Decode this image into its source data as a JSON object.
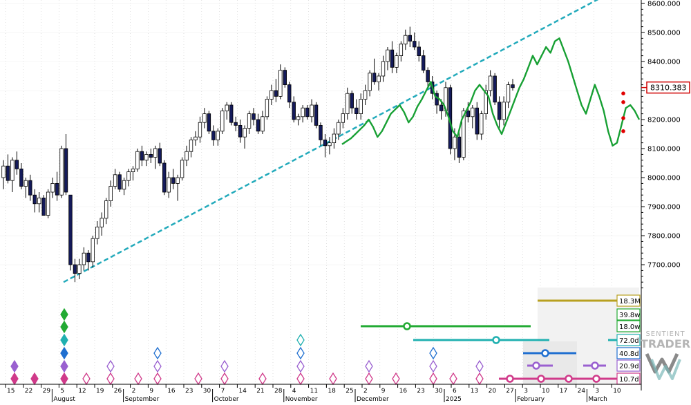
{
  "chart_data": {
    "type": "candlestick",
    "y_axis": {
      "ticks": [
        7700,
        7800,
        7900,
        8000,
        8100,
        8200,
        8300,
        8400,
        8500,
        8600
      ],
      "tick_labels": [
        "7700.000",
        "7800.000",
        "7900.000",
        "8000.000",
        "8100.000",
        "8200.000",
        "8300.000",
        "8400.000",
        "8500.000",
        "8600.000"
      ],
      "last_price_label": "8310.383",
      "last_price": 8310.383
    },
    "x_axis": {
      "day_ticks": [
        "15",
        "22",
        "29",
        "5",
        "12",
        "19",
        "26",
        "2",
        "9",
        "16",
        "23",
        "30",
        "7",
        "14",
        "21",
        "28",
        "4",
        "11",
        "18",
        "25",
        "2",
        "9",
        "16",
        "23",
        "30",
        "6",
        "13",
        "20",
        "27",
        "3",
        "10",
        "17",
        "24",
        "3",
        "10"
      ],
      "month_labels": [
        "August",
        "September",
        "October",
        "November",
        "December",
        "2025",
        "February",
        "March"
      ]
    },
    "candles": [
      {
        "o": 8000,
        "h": 8060,
        "l": 7960,
        "c": 8040
      },
      {
        "o": 8040,
        "h": 8080,
        "l": 7980,
        "c": 7990
      },
      {
        "o": 7990,
        "h": 8070,
        "l": 7950,
        "c": 8060
      },
      {
        "o": 8060,
        "h": 8090,
        "l": 8010,
        "c": 8030
      },
      {
        "o": 8030,
        "h": 8050,
        "l": 7960,
        "c": 7970
      },
      {
        "o": 7970,
        "h": 8000,
        "l": 7930,
        "c": 7990
      },
      {
        "o": 7990,
        "h": 8010,
        "l": 7920,
        "c": 7940
      },
      {
        "o": 7940,
        "h": 7960,
        "l": 7880,
        "c": 7910
      },
      {
        "o": 7910,
        "h": 7950,
        "l": 7880,
        "c": 7930
      },
      {
        "o": 7930,
        "h": 7940,
        "l": 7870,
        "c": 7870
      },
      {
        "o": 7870,
        "h": 7960,
        "l": 7860,
        "c": 7950
      },
      {
        "o": 7950,
        "h": 8000,
        "l": 7930,
        "c": 7980
      },
      {
        "o": 7980,
        "h": 8020,
        "l": 7920,
        "c": 7940
      },
      {
        "o": 7940,
        "h": 8110,
        "l": 7930,
        "c": 8100
      },
      {
        "o": 8100,
        "h": 8150,
        "l": 7940,
        "c": 7950
      },
      {
        "o": 7940,
        "h": 7940,
        "l": 7680,
        "c": 7700
      },
      {
        "o": 7700,
        "h": 7720,
        "l": 7640,
        "c": 7670
      },
      {
        "o": 7670,
        "h": 7720,
        "l": 7650,
        "c": 7700
      },
      {
        "o": 7700,
        "h": 7760,
        "l": 7680,
        "c": 7740
      },
      {
        "o": 7740,
        "h": 7750,
        "l": 7680,
        "c": 7710
      },
      {
        "o": 7710,
        "h": 7800,
        "l": 7690,
        "c": 7790
      },
      {
        "o": 7790,
        "h": 7850,
        "l": 7770,
        "c": 7830
      },
      {
        "o": 7830,
        "h": 7880,
        "l": 7800,
        "c": 7860
      },
      {
        "o": 7860,
        "h": 7930,
        "l": 7840,
        "c": 7920
      },
      {
        "o": 7920,
        "h": 7990,
        "l": 7900,
        "c": 7970
      },
      {
        "o": 7970,
        "h": 8030,
        "l": 7960,
        "c": 8010
      },
      {
        "o": 8010,
        "h": 8020,
        "l": 7950,
        "c": 7960
      },
      {
        "o": 7960,
        "h": 8000,
        "l": 7940,
        "c": 7990
      },
      {
        "o": 7990,
        "h": 8030,
        "l": 7970,
        "c": 8020
      },
      {
        "o": 8020,
        "h": 8040,
        "l": 7990,
        "c": 8030
      },
      {
        "o": 8030,
        "h": 8100,
        "l": 8020,
        "c": 8090
      },
      {
        "o": 8090,
        "h": 8110,
        "l": 8040,
        "c": 8060
      },
      {
        "o": 8060,
        "h": 8090,
        "l": 8040,
        "c": 8080
      },
      {
        "o": 8080,
        "h": 8100,
        "l": 8050,
        "c": 8070
      },
      {
        "o": 8070,
        "h": 8110,
        "l": 8030,
        "c": 8100
      },
      {
        "o": 8100,
        "h": 8120,
        "l": 8040,
        "c": 8050
      },
      {
        "o": 8050,
        "h": 8060,
        "l": 7940,
        "c": 7950
      },
      {
        "o": 7950,
        "h": 8020,
        "l": 7930,
        "c": 8000
      },
      {
        "o": 8000,
        "h": 8030,
        "l": 7960,
        "c": 7980
      },
      {
        "o": 7980,
        "h": 8010,
        "l": 7920,
        "c": 8000
      },
      {
        "o": 8000,
        "h": 8070,
        "l": 7990,
        "c": 8060
      },
      {
        "o": 8060,
        "h": 8110,
        "l": 8040,
        "c": 8090
      },
      {
        "o": 8090,
        "h": 8140,
        "l": 8070,
        "c": 8130
      },
      {
        "o": 8130,
        "h": 8160,
        "l": 8110,
        "c": 8140
      },
      {
        "o": 8140,
        "h": 8210,
        "l": 8120,
        "c": 8190
      },
      {
        "o": 8190,
        "h": 8240,
        "l": 8170,
        "c": 8220
      },
      {
        "o": 8220,
        "h": 8230,
        "l": 8150,
        "c": 8160
      },
      {
        "o": 8160,
        "h": 8180,
        "l": 8110,
        "c": 8130
      },
      {
        "o": 8130,
        "h": 8170,
        "l": 8110,
        "c": 8160
      },
      {
        "o": 8160,
        "h": 8240,
        "l": 8150,
        "c": 8230
      },
      {
        "o": 8230,
        "h": 8260,
        "l": 8200,
        "c": 8250
      },
      {
        "o": 8250,
        "h": 8260,
        "l": 8180,
        "c": 8190
      },
      {
        "o": 8190,
        "h": 8210,
        "l": 8160,
        "c": 8180
      },
      {
        "o": 8180,
        "h": 8200,
        "l": 8120,
        "c": 8140
      },
      {
        "o": 8140,
        "h": 8180,
        "l": 8100,
        "c": 8170
      },
      {
        "o": 8170,
        "h": 8230,
        "l": 8150,
        "c": 8220
      },
      {
        "o": 8220,
        "h": 8240,
        "l": 8180,
        "c": 8200
      },
      {
        "o": 8200,
        "h": 8220,
        "l": 8150,
        "c": 8160
      },
      {
        "o": 8160,
        "h": 8230,
        "l": 8150,
        "c": 8210
      },
      {
        "o": 8210,
        "h": 8280,
        "l": 8200,
        "c": 8270
      },
      {
        "o": 8270,
        "h": 8320,
        "l": 8250,
        "c": 8300
      },
      {
        "o": 8300,
        "h": 8340,
        "l": 8260,
        "c": 8280
      },
      {
        "o": 8280,
        "h": 8390,
        "l": 8270,
        "c": 8370
      },
      {
        "o": 8370,
        "h": 8380,
        "l": 8310,
        "c": 8320
      },
      {
        "o": 8320,
        "h": 8330,
        "l": 8240,
        "c": 8260
      },
      {
        "o": 8260,
        "h": 8280,
        "l": 8190,
        "c": 8200
      },
      {
        "o": 8200,
        "h": 8220,
        "l": 8180,
        "c": 8210
      },
      {
        "o": 8210,
        "h": 8250,
        "l": 8190,
        "c": 8240
      },
      {
        "o": 8240,
        "h": 8250,
        "l": 8200,
        "c": 8210
      },
      {
        "o": 8210,
        "h": 8270,
        "l": 8190,
        "c": 8250
      },
      {
        "o": 8250,
        "h": 8260,
        "l": 8170,
        "c": 8180
      },
      {
        "o": 8180,
        "h": 8190,
        "l": 8110,
        "c": 8130
      },
      {
        "o": 8130,
        "h": 8150,
        "l": 8070,
        "c": 8110
      },
      {
        "o": 8110,
        "h": 8140,
        "l": 8080,
        "c": 8120
      },
      {
        "o": 8120,
        "h": 8170,
        "l": 8100,
        "c": 8150
      },
      {
        "o": 8150,
        "h": 8200,
        "l": 8130,
        "c": 8190
      },
      {
        "o": 8190,
        "h": 8240,
        "l": 8170,
        "c": 8220
      },
      {
        "o": 8220,
        "h": 8310,
        "l": 8200,
        "c": 8290
      },
      {
        "o": 8290,
        "h": 8300,
        "l": 8220,
        "c": 8240
      },
      {
        "o": 8240,
        "h": 8270,
        "l": 8200,
        "c": 8220
      },
      {
        "o": 8220,
        "h": 8290,
        "l": 8200,
        "c": 8270
      },
      {
        "o": 8270,
        "h": 8320,
        "l": 8250,
        "c": 8300
      },
      {
        "o": 8300,
        "h": 8370,
        "l": 8280,
        "c": 8360
      },
      {
        "o": 8360,
        "h": 8410,
        "l": 8320,
        "c": 8330
      },
      {
        "o": 8330,
        "h": 8360,
        "l": 8300,
        "c": 8350
      },
      {
        "o": 8350,
        "h": 8420,
        "l": 8330,
        "c": 8400
      },
      {
        "o": 8400,
        "h": 8450,
        "l": 8370,
        "c": 8440
      },
      {
        "o": 8440,
        "h": 8470,
        "l": 8360,
        "c": 8380
      },
      {
        "o": 8380,
        "h": 8430,
        "l": 8360,
        "c": 8420
      },
      {
        "o": 8420,
        "h": 8470,
        "l": 8400,
        "c": 8460
      },
      {
        "o": 8460,
        "h": 8510,
        "l": 8440,
        "c": 8490
      },
      {
        "o": 8490,
        "h": 8520,
        "l": 8450,
        "c": 8470
      },
      {
        "o": 8470,
        "h": 8500,
        "l": 8440,
        "c": 8450
      },
      {
        "o": 8450,
        "h": 8470,
        "l": 8400,
        "c": 8420
      },
      {
        "o": 8420,
        "h": 8440,
        "l": 8360,
        "c": 8370
      },
      {
        "o": 8370,
        "h": 8380,
        "l": 8310,
        "c": 8330
      },
      {
        "o": 8330,
        "h": 8350,
        "l": 8270,
        "c": 8290
      },
      {
        "o": 8290,
        "h": 8300,
        "l": 8220,
        "c": 8250
      },
      {
        "o": 8250,
        "h": 8270,
        "l": 8200,
        "c": 8230
      },
      {
        "o": 8230,
        "h": 8330,
        "l": 8210,
        "c": 8310
      },
      {
        "o": 8310,
        "h": 8320,
        "l": 8080,
        "c": 8100
      },
      {
        "o": 8100,
        "h": 8170,
        "l": 8060,
        "c": 8140
      },
      {
        "o": 8140,
        "h": 8160,
        "l": 8050,
        "c": 8070
      },
      {
        "o": 8070,
        "h": 8240,
        "l": 8060,
        "c": 8230
      },
      {
        "o": 8230,
        "h": 8260,
        "l": 8190,
        "c": 8210
      },
      {
        "o": 8210,
        "h": 8250,
        "l": 8170,
        "c": 8240
      },
      {
        "o": 8240,
        "h": 8260,
        "l": 8130,
        "c": 8150
      },
      {
        "o": 8150,
        "h": 8230,
        "l": 8130,
        "c": 8220
      },
      {
        "o": 8220,
        "h": 8320,
        "l": 8200,
        "c": 8300
      },
      {
        "o": 8300,
        "h": 8370,
        "l": 8280,
        "c": 8350
      },
      {
        "o": 8350,
        "h": 8360,
        "l": 8250,
        "c": 8260
      },
      {
        "o": 8260,
        "h": 8280,
        "l": 8170,
        "c": 8200
      },
      {
        "o": 8200,
        "h": 8280,
        "l": 8180,
        "c": 8260
      },
      {
        "o": 8260,
        "h": 8330,
        "l": 8240,
        "c": 8320
      },
      {
        "o": 8320,
        "h": 8340,
        "l": 8300,
        "c": 8310
      }
    ],
    "seasonal_projection": [
      [
        8115,
        8125,
        8135,
        8150,
        8165,
        8180,
        8200,
        8175,
        8140,
        8160,
        8190,
        8220,
        8235,
        8250,
        8225,
        8190,
        8210,
        8245,
        8270,
        8300,
        8330,
        8280,
        8270,
        8250,
        8210,
        8160,
        8140,
        8200,
        8230,
        8260,
        8300,
        8320,
        8300,
        8280,
        8220,
        8180,
        8150,
        8190,
        8230,
        8270,
        8310,
        8340,
        8380,
        8420,
        8390,
        8420,
        8450,
        8430,
        8470,
        8480,
        8440,
        8400,
        8350,
        8300,
        8250,
        8220,
        8270,
        8320,
        8280,
        8230,
        8160,
        8110,
        8120,
        8180,
        8240,
        8250,
        8230,
        8200
      ]
    ],
    "trendline": {
      "from": 7640,
      "to": 8620
    },
    "signal_lines": [
      {
        "label": "18.3M",
        "color": "#b8a020",
        "span": [
          0.0,
          1.0
        ]
      },
      {
        "label": "39.8w",
        "color": "#22aa33",
        "span": [
          0.0,
          1.0
        ]
      },
      {
        "label": "18.0w",
        "color": "#22aa33",
        "span": [
          0.0,
          0.55
        ]
      },
      {
        "label": "72.0d",
        "color": "#20b0b0",
        "span": [
          0.0,
          0.4
        ]
      },
      {
        "label": "40.8d",
        "color": "#1f6fd0",
        "span": [
          0.0,
          0.35
        ]
      },
      {
        "label": "20.9d",
        "color": "#9a60d0",
        "span": [
          0.0,
          0.3
        ]
      },
      {
        "label": "10.7d",
        "color": "#d03a8a",
        "span": [
          0.0,
          0.25
        ]
      }
    ],
    "markers": {
      "colors": {
        "green": "#22aa33",
        "teal": "#20b0b0",
        "blue": "#1f6fd0",
        "purple": "#9a60d0",
        "pink": "#d03a8a"
      },
      "red_dots": [
        8290,
        8260,
        8205,
        8160
      ]
    },
    "logo": {
      "line1": "SENTIENT",
      "line2": "TRADER"
    }
  }
}
